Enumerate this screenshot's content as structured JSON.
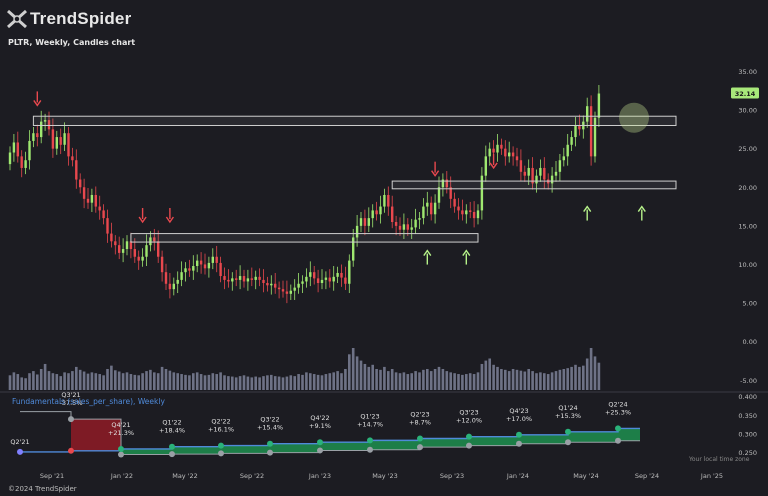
{
  "brand": {
    "name": "TrendSpider",
    "logo_icon": "trendspider-logo-icon"
  },
  "chart_title": "PLTR, Weekly, Candles chart",
  "copyright": "©2024 TrendSpider",
  "timezone_note": "Your local time zone",
  "colors": {
    "background": "#1c1c22",
    "up": "#9fe870",
    "down": "#e8484e",
    "zone": "#cfcfcf",
    "arrow_up": "#b6f28a",
    "arrow_down": "#e8484e",
    "price_badge": "#a8e87a",
    "fund_line": "#4f8ad9",
    "fund_up_fill": "#1e8a4c",
    "fund_down_fill": "#8a1c26",
    "volume": "#8a8fa8"
  },
  "chart_data": [
    {
      "type": "candlestick",
      "title": "PLTR, Weekly, Candles chart",
      "x_ticks": [
        "Sep '21",
        "Jan '22",
        "May '22",
        "Sep '22",
        "Jan '23",
        "May '23",
        "Sep '23",
        "Jan '24",
        "May '24",
        "Sep '24",
        "Jan '25"
      ],
      "y_ticks": [
        "35.00",
        "30.00",
        "25.00",
        "20.00",
        "15.00",
        "10.00",
        "5.00",
        "0.00",
        "-5.00"
      ],
      "ylim": [
        -6,
        37
      ],
      "last_price": "32.14",
      "closes": [
        24.5,
        25.8,
        24.0,
        22.5,
        23.5,
        26.0,
        27.0,
        26.5,
        28.5,
        28.7,
        27.5,
        25.0,
        26.5,
        25.5,
        27.0,
        24.0,
        23.5,
        21.0,
        20.0,
        18.5,
        18.0,
        19.0,
        17.5,
        17.0,
        16.0,
        14.0,
        13.0,
        12.5,
        11.5,
        12.0,
        13.0,
        12.0,
        11.0,
        10.5,
        11.0,
        12.5,
        13.5,
        13.0,
        11.0,
        9.0,
        7.5,
        6.8,
        7.5,
        8.0,
        9.0,
        9.5,
        9.2,
        9.8,
        10.5,
        10.0,
        9.5,
        10.2,
        11.0,
        10.2,
        8.5,
        8.0,
        7.8,
        8.2,
        8.0,
        8.5,
        7.8,
        8.2,
        8.0,
        8.4,
        8.0,
        7.6,
        7.3,
        7.5,
        7.0,
        6.8,
        6.5,
        6.2,
        6.6,
        7.0,
        7.5,
        7.8,
        8.4,
        9.0,
        8.2,
        7.6,
        8.0,
        8.3,
        7.8,
        8.4,
        8.9,
        8.3,
        7.5,
        10.5,
        13.5,
        15.0,
        16.0,
        15.0,
        16.0,
        17.0,
        16.5,
        17.5,
        19.0,
        17.5,
        15.5,
        15.0,
        14.5,
        15.2,
        14.5,
        14.8,
        15.8,
        16.0,
        17.5,
        18.0,
        16.5,
        18.0,
        20.0,
        21.0,
        20.0,
        18.5,
        17.5,
        17.0,
        16.5,
        17.0,
        16.8,
        16.0,
        17.0,
        21.5,
        24.0,
        25.0,
        24.5,
        25.5,
        25.0,
        24.0,
        24.5,
        24.0,
        23.5,
        22.0,
        21.5,
        22.5,
        20.5,
        21.5,
        22.5,
        21.0,
        20.5,
        21.5,
        22.0,
        23.5,
        24.0,
        25.5,
        26.5,
        28.0,
        27.5,
        28.5,
        30.5,
        24.0,
        29.0,
        32.14
      ],
      "volume": [
        0.35,
        0.42,
        0.38,
        0.3,
        0.28,
        0.4,
        0.45,
        0.37,
        0.5,
        0.62,
        0.45,
        0.4,
        0.38,
        0.33,
        0.42,
        0.4,
        0.45,
        0.55,
        0.48,
        0.44,
        0.39,
        0.42,
        0.4,
        0.38,
        0.35,
        0.5,
        0.58,
        0.47,
        0.44,
        0.4,
        0.42,
        0.38,
        0.36,
        0.35,
        0.4,
        0.45,
        0.48,
        0.42,
        0.4,
        0.55,
        0.5,
        0.46,
        0.42,
        0.4,
        0.38,
        0.36,
        0.35,
        0.4,
        0.42,
        0.38,
        0.35,
        0.36,
        0.4,
        0.38,
        0.42,
        0.35,
        0.33,
        0.32,
        0.3,
        0.33,
        0.35,
        0.32,
        0.3,
        0.32,
        0.3,
        0.33,
        0.35,
        0.36,
        0.33,
        0.32,
        0.3,
        0.32,
        0.35,
        0.33,
        0.38,
        0.36,
        0.42,
        0.4,
        0.38,
        0.36,
        0.35,
        0.38,
        0.4,
        0.42,
        0.45,
        0.4,
        0.5,
        0.85,
        1.0,
        0.8,
        0.7,
        0.62,
        0.55,
        0.6,
        0.5,
        0.48,
        0.55,
        0.45,
        0.5,
        0.42,
        0.4,
        0.42,
        0.38,
        0.4,
        0.45,
        0.42,
        0.48,
        0.5,
        0.45,
        0.5,
        0.55,
        0.5,
        0.45,
        0.42,
        0.4,
        0.38,
        0.36,
        0.38,
        0.4,
        0.38,
        0.42,
        0.62,
        0.7,
        0.75,
        0.6,
        0.55,
        0.5,
        0.48,
        0.45,
        0.5,
        0.48,
        0.46,
        0.44,
        0.5,
        0.45,
        0.4,
        0.42,
        0.4,
        0.38,
        0.42,
        0.45,
        0.48,
        0.5,
        0.52,
        0.55,
        0.6,
        0.55,
        0.58,
        0.75,
        1.0,
        0.8,
        0.65
      ],
      "zones": [
        {
          "from_week": 6,
          "to_week": 160,
          "low": 28.0,
          "high": 29.2
        },
        {
          "from_week": 98,
          "to_week": 160,
          "low": 19.8,
          "high": 20.8
        },
        {
          "from_week": 31,
          "to_week": 120,
          "low": 12.9,
          "high": 14.0
        }
      ],
      "down_arrows": [
        {
          "week": 7,
          "price": 30.6
        },
        {
          "week": 34,
          "price": 15.5
        },
        {
          "week": 41,
          "price": 15.5
        },
        {
          "week": 109,
          "price": 21.5
        },
        {
          "week": 124,
          "price": 22.5
        }
      ],
      "up_arrows": [
        {
          "week": 107,
          "price": 11.8
        },
        {
          "week": 117,
          "price": 11.8
        },
        {
          "week": 148,
          "price": 17.5
        },
        {
          "week": 162,
          "price": 17.5
        }
      ],
      "highlight_circle": {
        "week": 160,
        "price": 29.0
      }
    },
    {
      "type": "line",
      "title": "Fundamentals (sales_per_share), Weekly",
      "y_ticks": [
        "0.400",
        "0.350",
        "0.300",
        "0.250"
      ],
      "ylim": [
        0.225,
        0.41
      ],
      "quarters": [
        "Q2'21",
        "Q3'21",
        "Q4'21",
        "Q1'22",
        "Q2'22",
        "Q3'22",
        "Q4'22",
        "Q1'23",
        "Q2'23",
        "Q3'23",
        "Q4'23",
        "Q1'24",
        "Q2'24"
      ],
      "changes": [
        "",
        "-37.5%",
        "+21.3%",
        "+18.4%",
        "+16.1%",
        "+15.4%",
        "+9.1%",
        "+14.7%",
        "+8.7%",
        "+12.0%",
        "+17.0%",
        "+15.3%",
        "+25.3%"
      ],
      "values": [
        0.252,
        0.255,
        0.26,
        0.266,
        0.269,
        0.274,
        0.278,
        0.283,
        0.288,
        0.293,
        0.298,
        0.306,
        0.315
      ],
      "year_ago_values": [
        0.36,
        0.34,
        0.245,
        0.246,
        0.248,
        0.25,
        0.256,
        0.258,
        0.265,
        0.269,
        0.274,
        0.278,
        0.282
      ]
    }
  ]
}
